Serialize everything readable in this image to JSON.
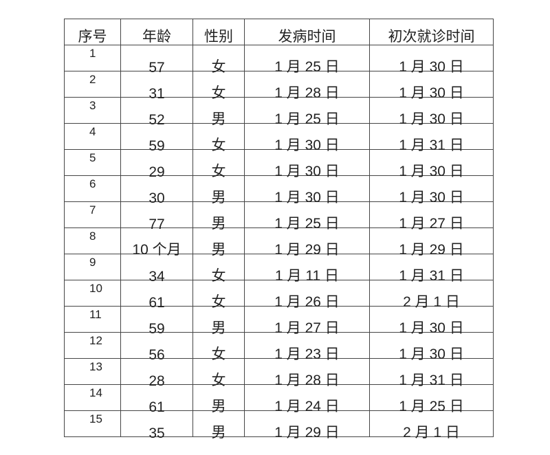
{
  "table": {
    "headers": [
      "序号",
      "年龄",
      "性别",
      "发病时间",
      "初次就诊时间"
    ],
    "rows": [
      [
        "1",
        "57",
        "女",
        "1 月 25 日",
        "1 月 30 日"
      ],
      [
        "2",
        "31",
        "女",
        "1 月 28 日",
        "1 月 30 日"
      ],
      [
        "3",
        "52",
        "男",
        "1 月 25 日",
        "1 月 30 日"
      ],
      [
        "4",
        "59",
        "女",
        "1 月 30 日",
        "1 月 31 日"
      ],
      [
        "5",
        "29",
        "女",
        "1 月 30 日",
        "1 月 30 日"
      ],
      [
        "6",
        "30",
        "男",
        "1 月 30 日",
        "1 月 30 日"
      ],
      [
        "7",
        "77",
        "男",
        "1 月 25 日",
        "1 月 27 日"
      ],
      [
        "8",
        "10 个月",
        "男",
        "1 月 29 日",
        "1 月 29 日"
      ],
      [
        "9",
        "34",
        "女",
        "1 月 11 日",
        "1 月 31 日"
      ],
      [
        "10",
        "61",
        "女",
        "1 月 26 日",
        "2 月 1 日"
      ],
      [
        "11",
        "59",
        "男",
        "1 月 27 日",
        "1 月 30 日"
      ],
      [
        "12",
        "56",
        "女",
        "1 月 23 日",
        "1 月 30 日"
      ],
      [
        "13",
        "28",
        "女",
        "1 月 28 日",
        "1 月 31 日"
      ],
      [
        "14",
        "61",
        "男",
        "1 月 24 日",
        "1 月 25 日"
      ],
      [
        "15",
        "35",
        "男",
        "1 月 29 日",
        "2 月 1 日"
      ]
    ]
  }
}
